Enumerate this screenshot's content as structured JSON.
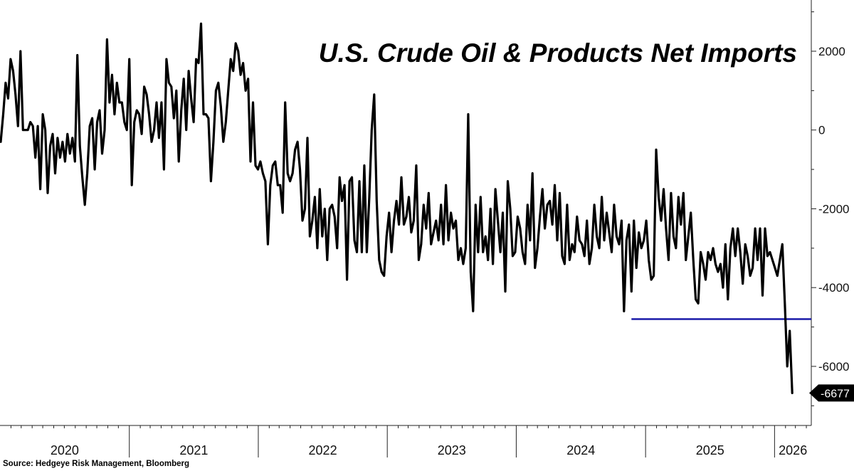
{
  "chart_data": {
    "type": "line",
    "title": "U.S. Crude Oil & Products Net Imports",
    "source": "Source: Hedgeye Risk Management, Bloomberg",
    "xlabel": "",
    "ylabel": "",
    "ylim": [
      -7500,
      3300
    ],
    "y_ticks": [
      "2000",
      "0",
      "-2000",
      "-4000",
      "-6000"
    ],
    "y_tick_values": [
      2000,
      0,
      -2000,
      -4000,
      -6000
    ],
    "x_year_labels": [
      "2020",
      "2021",
      "2022",
      "2023",
      "2024",
      "2025",
      "2026"
    ],
    "x_start": "2020-01-01",
    "x_end": "2026-04-15",
    "y_axis_side": "right",
    "grid": false,
    "legend": "none",
    "line_color": "#000000",
    "reference_line": {
      "value": -4800,
      "start_date": "2024-11-22",
      "end_date": "2026-04-15",
      "color": "#1a1aa8"
    },
    "last_value_label": "-6677",
    "series": [
      {
        "x_start": "2020-01-03",
        "x_step_days": 7,
        "values": [
          -300,
          400,
          1200,
          800,
          1800,
          1500,
          900,
          100,
          2000,
          0,
          0,
          0,
          200,
          100,
          -700,
          100,
          -1500,
          400,
          0,
          -1600,
          -400,
          -100,
          -1100,
          -200,
          -700,
          -300,
          -800,
          -100,
          -600,
          -200,
          -800,
          1900,
          -400,
          -1200,
          -1900,
          -1100,
          100,
          300,
          -1000,
          200,
          500,
          -600,
          0,
          2300,
          700,
          1400,
          400,
          1200,
          700,
          700,
          200,
          0,
          1800,
          -1400,
          200,
          500,
          400,
          -100,
          1100,
          900,
          400,
          -300,
          0,
          700,
          -200,
          700,
          -1000,
          1800,
          1200,
          1100,
          300,
          1000,
          -800,
          500,
          1300,
          0,
          1500,
          800,
          200,
          1800,
          1700,
          2700,
          400,
          400,
          300,
          -1300,
          -300,
          1000,
          1200,
          600,
          -300,
          200,
          1000,
          1800,
          1500,
          2200,
          2000,
          1400,
          1700,
          1000,
          1300,
          -800,
          700,
          -900,
          -1000,
          -800,
          -1100,
          -1300,
          -2900,
          -1400,
          -900,
          -800,
          -1400,
          -1400,
          -2100,
          700,
          -1100,
          -1300,
          -1100,
          -500,
          -300,
          -1000,
          -2300,
          -2000,
          -200,
          -2700,
          -2300,
          -1700,
          -3000,
          -1500,
          -2700,
          -2000,
          -3300,
          -2000,
          -1900,
          -2200,
          -3000,
          -1200,
          -1800,
          -1400,
          -3800,
          -1300,
          -1200,
          -2800,
          -3100,
          -1300,
          -3100,
          -900,
          -3100,
          -1700,
          0,
          900,
          -1800,
          -3300,
          -3600,
          -3700,
          -2700,
          -2100,
          -3100,
          -2300,
          -1800,
          -2400,
          -1200,
          -2400,
          -2200,
          -1700,
          -2600,
          -2300,
          -900,
          -3300,
          -2900,
          -1900,
          -2500,
          -1600,
          -2900,
          -2600,
          -2300,
          -2800,
          -1900,
          -2900,
          -1400,
          -2800,
          -2100,
          -2500,
          -2300,
          -3300,
          -3000,
          -3400,
          -3000,
          400,
          -3600,
          -4600,
          -1900,
          -3100,
          -1700,
          -3100,
          -2700,
          -3300,
          -2000,
          -3400,
          -1500,
          -2300,
          -3100,
          -2100,
          -4100,
          -1300,
          -2000,
          -3200,
          -3100,
          -2200,
          -2500,
          -3100,
          -3400,
          -1900,
          -2800,
          -1100,
          -3500,
          -3000,
          -2200,
          -1500,
          -2500,
          -1900,
          -1800,
          -2400,
          -1400,
          -2800,
          -1600,
          -3200,
          -3400,
          -1900,
          -3300,
          -2900,
          -3100,
          -2200,
          -2800,
          -2900,
          -3200,
          -2300,
          -3400,
          -3000,
          -1900,
          -2700,
          -3000,
          -1700,
          -2800,
          -2100,
          -2600,
          -3100,
          -1900,
          -2700,
          -2900,
          -2300,
          -4600,
          -2800,
          -2400,
          -4100,
          -2300,
          -3500,
          -2600,
          -3000,
          -2800,
          -2300,
          -3300,
          -3800,
          -3700,
          -500,
          -1700,
          -2300,
          -1500,
          -2500,
          -3300,
          -1600,
          -2700,
          -3000,
          -1700,
          -2400,
          -1600,
          -3300,
          -2700,
          -2100,
          -3300,
          -4300,
          -4400,
          -3100,
          -3400,
          -3800,
          -3100,
          -3300,
          -3000,
          -3400,
          -3600,
          -3400,
          -4000,
          -2900,
          -4300,
          -3000,
          -2500,
          -3200,
          -2500,
          -3100,
          -3900,
          -2900,
          -3200,
          -3700,
          -3500,
          -2500,
          -3300,
          -2500,
          -4200,
          -2500,
          -3200,
          -3100,
          -3300,
          -3500,
          -3700,
          -3300,
          -2900,
          -4400,
          -6000,
          -5100,
          -6677
        ]
      }
    ]
  }
}
